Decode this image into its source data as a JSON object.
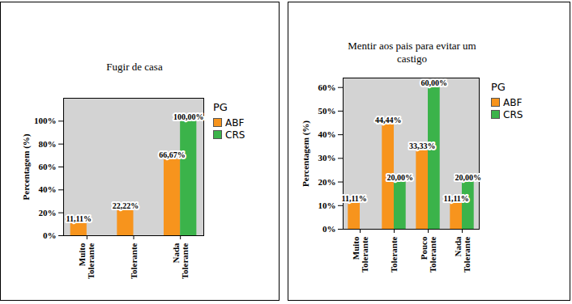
{
  "chart_data": [
    {
      "type": "bar",
      "title": "Fugir de casa",
      "categories": [
        "Muito Tolerante",
        "Tolerante",
        "Nada Tolerante"
      ],
      "series": [
        {
          "name": "ABF",
          "color": "#f7941d",
          "values": [
            11.11,
            22.22,
            66.67
          ],
          "value_labels": [
            "11,11%",
            "22,22%",
            "66,67%"
          ]
        },
        {
          "name": "CRS",
          "color": "#3bb34a",
          "values": [
            null,
            null,
            100
          ],
          "value_labels": [
            null,
            null,
            "100,00%"
          ]
        }
      ],
      "ylabel": "Percentagem (%)",
      "ylim": [
        0,
        120
      ],
      "yticks": [
        {
          "value": 0,
          "label": "0%"
        },
        {
          "value": 20,
          "label": "20%"
        },
        {
          "value": 40,
          "label": "40%"
        },
        {
          "value": 60,
          "label": "60%"
        },
        {
          "value": 80,
          "label": "80%"
        },
        {
          "value": 100,
          "label": "100%"
        }
      ],
      "legend": "right",
      "legend_title": "PG",
      "data_labels": true
    },
    {
      "type": "bar",
      "title": "Mentir aos pais para evitar um castigo",
      "categories": [
        "Muito Tolerante",
        "Tolerante",
        "Pouco Tolerante",
        "Nada Tolerante"
      ],
      "series": [
        {
          "name": "ABF",
          "color": "#f7941d",
          "values": [
            11.11,
            44.44,
            33.33,
            11.11
          ],
          "value_labels": [
            "11,11%",
            "44,44%",
            "33,33%",
            "11,11%"
          ]
        },
        {
          "name": "CRS",
          "color": "#3bb34a",
          "values": [
            null,
            20,
            60,
            20
          ],
          "value_labels": [
            null,
            "20,00%",
            "60,00%",
            "20,00%"
          ]
        }
      ],
      "ylabel": "Percentagem (%)",
      "ylim": [
        0,
        64
      ],
      "yticks": [
        {
          "value": 0,
          "label": "0%"
        },
        {
          "value": 10,
          "label": "10%"
        },
        {
          "value": 20,
          "label": "20%"
        },
        {
          "value": 30,
          "label": "30%"
        },
        {
          "value": 40,
          "label": "40%"
        },
        {
          "value": 50,
          "label": "50%"
        },
        {
          "value": 60,
          "label": "60%"
        }
      ],
      "legend": "right",
      "legend_title": "PG",
      "data_labels": true
    }
  ]
}
